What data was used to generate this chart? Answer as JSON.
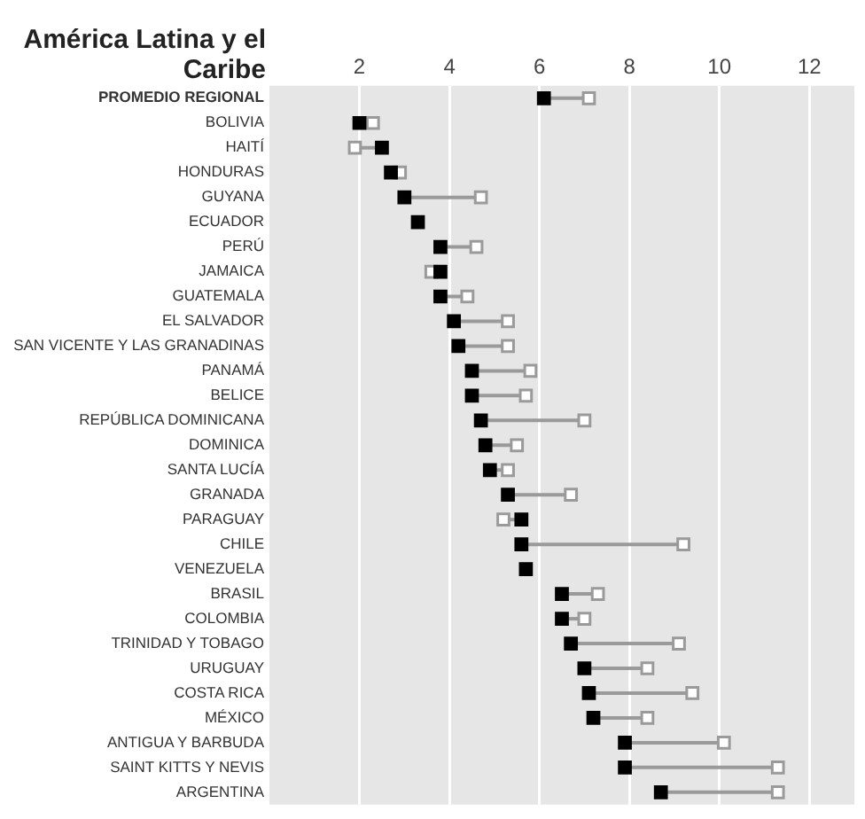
{
  "chart_data": {
    "type": "scatter",
    "orientation": "horizontal",
    "title": "América Latina y el Caribe",
    "categories": [
      "PROMEDIO REGIONAL",
      "BOLIVIA",
      "HAITÍ",
      "HONDURAS",
      "GUYANA",
      "ECUADOR",
      "PERÚ",
      "JAMAICA",
      "GUATEMALA",
      "EL SALVADOR",
      "SAN VICENTE Y LAS GRANADINAS",
      "PANAMÁ",
      "BELICE",
      "REPÚBLICA DOMINICANA",
      "DOMINICA",
      "SANTA LUCÍA",
      "GRANADA",
      "PARAGUAY",
      "CHILE",
      "VENEZUELA",
      "BRASIL",
      "COLOMBIA",
      "TRINIDAD Y TOBAGO",
      "URUGUAY",
      "COSTA RICA",
      "MÉXICO",
      "ANTIGUA Y BARBUDA",
      "SAINT KITTS Y NEVIS",
      "ARGENTINA"
    ],
    "series": [
      {
        "color": "#9a9a9a",
        "values": [
          7.1,
          2.3,
          1.9,
          2.9,
          4.7,
          null,
          4.6,
          3.6,
          4.4,
          5.3,
          5.3,
          5.8,
          5.7,
          7.0,
          5.5,
          5.3,
          6.7,
          5.2,
          9.2,
          null,
          7.3,
          7.0,
          9.1,
          8.4,
          9.4,
          8.4,
          10.1,
          11.3,
          11.3
        ]
      },
      {
        "color": "#000000",
        "values": [
          6.1,
          2.0,
          2.5,
          2.7,
          3.0,
          3.3,
          3.8,
          3.8,
          3.8,
          4.1,
          4.2,
          4.5,
          4.5,
          4.7,
          4.8,
          4.9,
          5.3,
          5.6,
          5.6,
          5.7,
          6.5,
          6.5,
          6.7,
          7.0,
          7.1,
          7.2,
          7.9,
          7.9,
          8.7
        ]
      }
    ],
    "xlim": [
      0,
      13
    ],
    "xticks": [
      2,
      4,
      6,
      8,
      10,
      12
    ],
    "grid": "x",
    "marker": "square",
    "legend": false
  }
}
